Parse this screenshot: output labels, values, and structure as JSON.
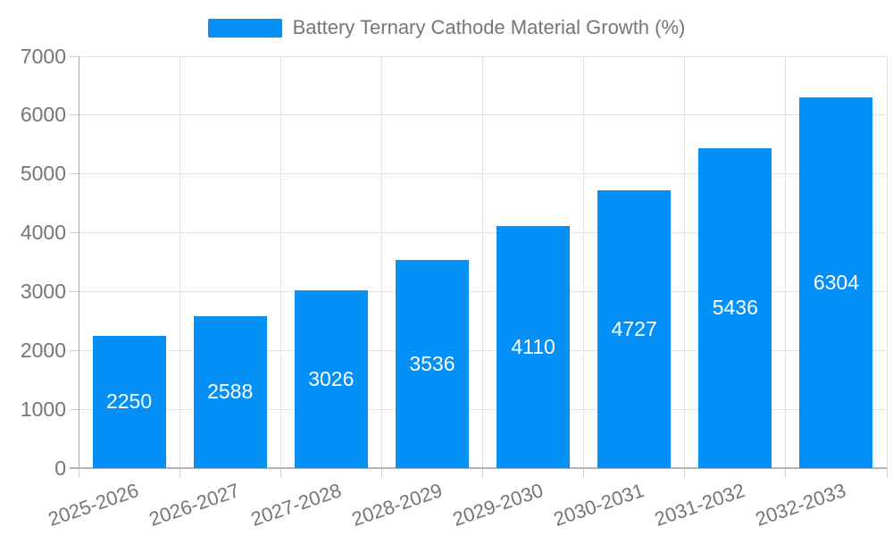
{
  "chart_data": {
    "type": "bar",
    "title": "Battery Ternary Cathode Material Growth (%)",
    "categories": [
      "2025-2026",
      "2026-2027",
      "2027-2028",
      "2028-2029",
      "2029-2030",
      "2030-2031",
      "2031-2032",
      "2032-2033"
    ],
    "values": [
      2250,
      2588,
      3026,
      3536,
      4110,
      4727,
      5436,
      6304
    ],
    "xlabel": "",
    "ylabel": "",
    "ylim": [
      0,
      7000
    ],
    "ytick_interval": 1000,
    "ytick_labels": [
      "0",
      "1000",
      "2000",
      "3000",
      "4000",
      "5000",
      "6000",
      "7000"
    ],
    "grid": true,
    "legend_position": "top-center",
    "bar_label_position": "inside-middle",
    "x_label_rotation_deg": -19,
    "colors": {
      "bar": "#0590f7",
      "bar_label": "#ffffff",
      "axis_text": "#73767a",
      "axis_line": "#a6a9ae",
      "grid_line": "#e4e4e4",
      "background": "#ffffff"
    }
  }
}
